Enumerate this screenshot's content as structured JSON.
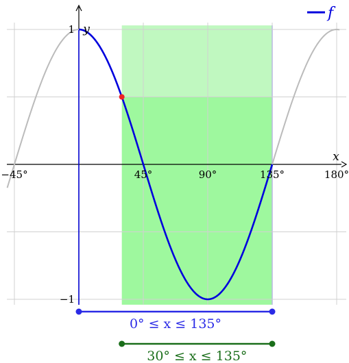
{
  "chart_data": {
    "type": "line",
    "function": "cos(2x)",
    "xlim": [
      -50,
      182
    ],
    "ylim": [
      -1.05,
      1.05
    ],
    "grid": true,
    "x_ticks": [
      {
        "value": -45,
        "label": "−45°"
      },
      {
        "value": 45,
        "label": "45°"
      },
      {
        "value": 90,
        "label": "90°"
      },
      {
        "value": 135,
        "label": "135°"
      },
      {
        "value": 180,
        "label": "180°"
      }
    ],
    "y_ticks": [
      {
        "value": 1,
        "label": "1"
      },
      {
        "value": -1,
        "label": "−1"
      }
    ],
    "xlabel": "x",
    "ylabel": "y",
    "legend": {
      "position": "top-right",
      "label": "f",
      "color": "#0000dd"
    },
    "series": [
      {
        "name": "f",
        "domain": [
          0,
          135
        ],
        "color": "#0000dd"
      }
    ],
    "background_curve": {
      "domain": [
        -50,
        182
      ],
      "color": "#bbbbbb"
    },
    "highlight_region": {
      "x": [
        30,
        135
      ],
      "y_split": 0.5,
      "color_upper": "#c0f8c0",
      "color_lower": "#9ef89e"
    },
    "marked_point": {
      "x": 30,
      "y": 0.5,
      "color": "#ee2222"
    },
    "domain_bars": [
      {
        "from": 0,
        "to": 135,
        "label": "0° ≤ x ≤ 135°",
        "color": "#2a2ae6"
      },
      {
        "from": 30,
        "to": 135,
        "label": "30° ≤ x ≤ 135°",
        "color": "#1a6e1a"
      }
    ]
  }
}
